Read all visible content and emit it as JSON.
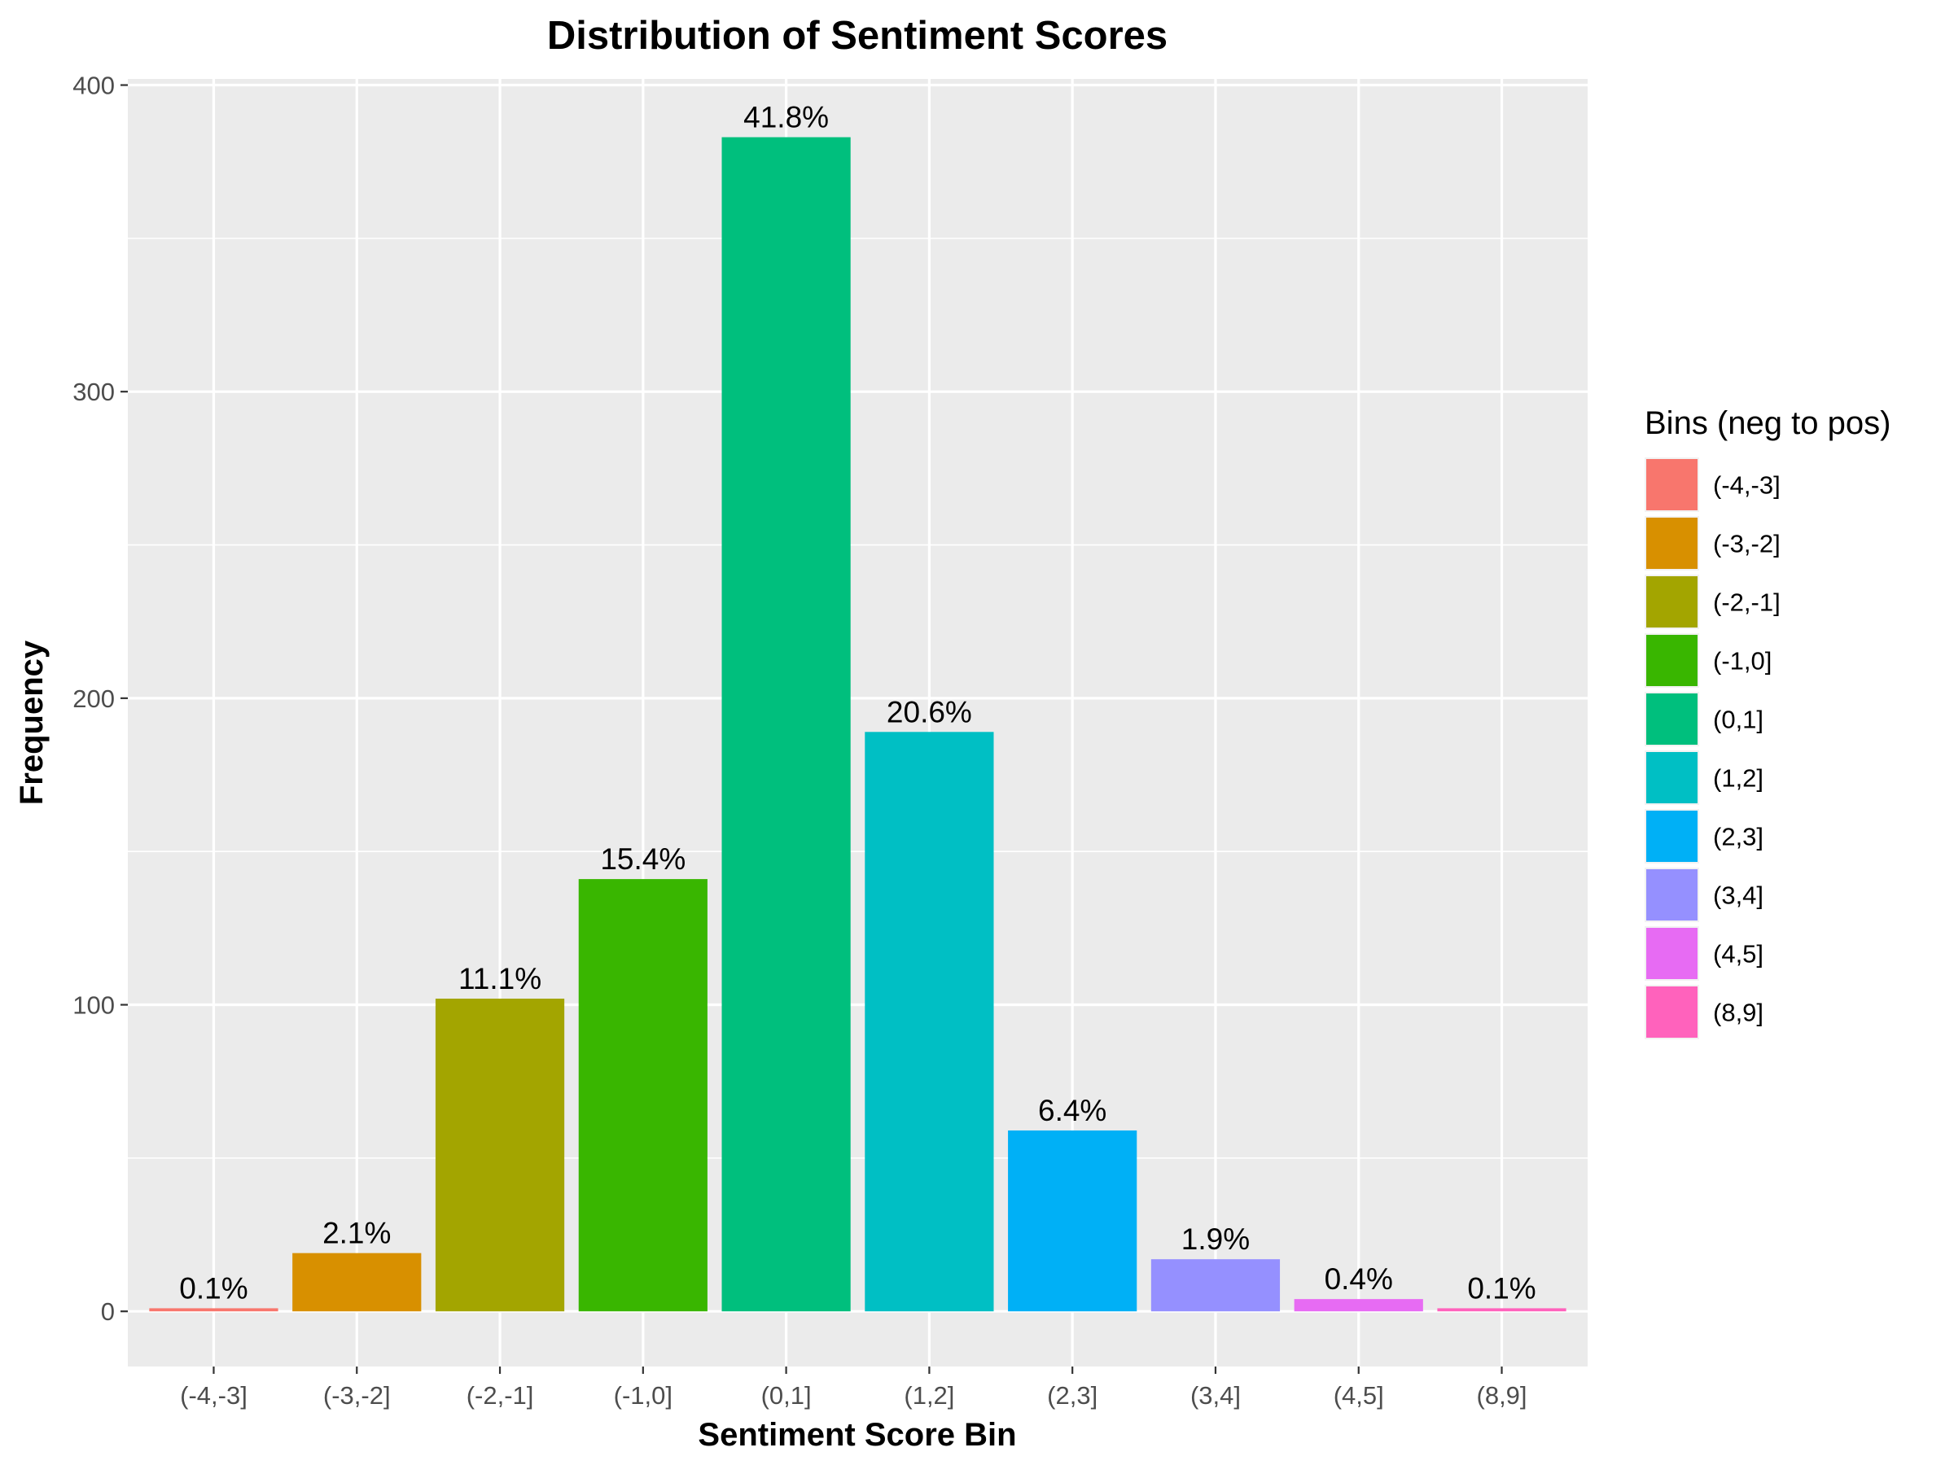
{
  "chart_data": {
    "type": "bar",
    "title": "Distribution of Sentiment Scores",
    "xlabel": "Sentiment Score Bin",
    "ylabel": "Frequency",
    "categories": [
      "(-4,-3]",
      "(-3,-2]",
      "(-2,-1]",
      "(-1,0]",
      "(0,1]",
      "(1,2]",
      "(2,3]",
      "(3,4]",
      "(4,5]",
      "(8,9]"
    ],
    "values": [
      1,
      19,
      102,
      141,
      383,
      189,
      59,
      17,
      4,
      1
    ],
    "labels": [
      "0.1%",
      "2.1%",
      "11.1%",
      "15.4%",
      "41.8%",
      "20.6%",
      "6.4%",
      "1.9%",
      "0.4%",
      "0.1%"
    ],
    "colors": [
      "#F8766D",
      "#D89000",
      "#A3A500",
      "#39B600",
      "#00BF7D",
      "#00BFC4",
      "#00B0F6",
      "#9590FF",
      "#E76BF3",
      "#FF62BC"
    ],
    "yticks": [
      0,
      100,
      200,
      300,
      400
    ],
    "ylim": [
      -18,
      402
    ],
    "grid": true,
    "legend": {
      "title": "Bins (neg to pos)",
      "position": "right"
    }
  }
}
